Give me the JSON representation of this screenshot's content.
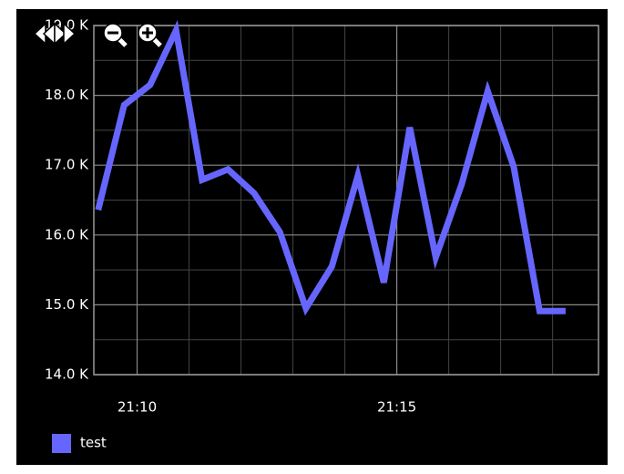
{
  "chart_data": {
    "type": "line",
    "x": [
      "21:09:15",
      "21:09:45",
      "21:10:15",
      "21:10:45",
      "21:11:15",
      "21:11:45",
      "21:12:15",
      "21:12:45",
      "21:13:15",
      "21:13:45",
      "21:14:15",
      "21:14:45",
      "21:15:15",
      "21:15:45",
      "21:16:15",
      "21:16:45",
      "21:17:15",
      "21:17:45",
      "21:18:15"
    ],
    "series": [
      {
        "name": "test",
        "color": "#6666ff",
        "values": [
          16360,
          17860,
          18150,
          18930,
          16790,
          16940,
          16600,
          16040,
          14950,
          15550,
          16850,
          15320,
          17540,
          15680,
          16730,
          18060,
          16980,
          14910,
          14910
        ]
      }
    ],
    "xlim": [
      "21:09:10",
      "21:18:53"
    ],
    "xticks": [
      "21:10",
      "21:15"
    ],
    "x_minor_ticks": [
      "21:11",
      "21:12",
      "21:13",
      "21:14",
      "21:16",
      "21:17",
      "21:18"
    ],
    "ylim": [
      14000,
      19000
    ],
    "yticks": [
      {
        "value": 14000,
        "label": "14.0 K"
      },
      {
        "value": 15000,
        "label": "15.0 K"
      },
      {
        "value": 16000,
        "label": "16.0 K"
      },
      {
        "value": 17000,
        "label": "17.0 K"
      },
      {
        "value": 18000,
        "label": "18.0 K"
      },
      {
        "value": 19000,
        "label": "19.0 K"
      }
    ],
    "y_minor_ticks": [
      14500,
      15500,
      16500,
      17500,
      18500
    ],
    "grid": true
  }
}
